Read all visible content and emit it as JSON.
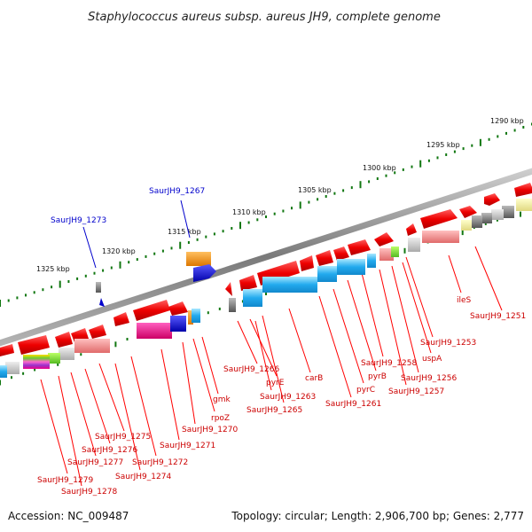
{
  "title": "Staphylococcus aureus subsp. aureus JH9, complete genome",
  "footer": {
    "accession": "Accession: NC_009487",
    "summary": "Topology: circular; Length: 2,906,700 bp; Genes: 2,777"
  },
  "scale_labels": [
    "1290 kbp",
    "1295 kbp",
    "1300 kbp",
    "1305 kbp",
    "1310 kbp",
    "1315 kbp",
    "1320 kbp",
    "1325 kbp"
  ],
  "gene_labels": [
    {
      "text": "ileS",
      "highlight": false
    },
    {
      "text": "SaurJH9_1251",
      "highlight": false
    },
    {
      "text": "SaurJH9_1253",
      "highlight": false
    },
    {
      "text": "uspA",
      "highlight": false
    },
    {
      "text": "SaurJH9_1256",
      "highlight": false
    },
    {
      "text": "SaurJH9_1257",
      "highlight": false
    },
    {
      "text": "SaurJH9_1258",
      "highlight": false
    },
    {
      "text": "pyrB",
      "highlight": false
    },
    {
      "text": "pyrC",
      "highlight": false
    },
    {
      "text": "SaurJH9_1261",
      "highlight": false
    },
    {
      "text": "carB",
      "highlight": false
    },
    {
      "text": "SaurJH9_1266",
      "highlight": false
    },
    {
      "text": "pyrE",
      "highlight": false
    },
    {
      "text": "SaurJH9_1263",
      "highlight": false
    },
    {
      "text": "SaurJH9_1265",
      "highlight": false
    },
    {
      "text": "gmk",
      "highlight": false
    },
    {
      "text": "rpoZ",
      "highlight": false
    },
    {
      "text": "SaurJH9_1270",
      "highlight": false
    },
    {
      "text": "SaurJH9_1271",
      "highlight": false
    },
    {
      "text": "SaurJH9_1272",
      "highlight": false
    },
    {
      "text": "SaurJH9_1274",
      "highlight": false
    },
    {
      "text": "SaurJH9_1275",
      "highlight": false
    },
    {
      "text": "SaurJH9_1276",
      "highlight": false
    },
    {
      "text": "SaurJH9_1277",
      "highlight": false
    },
    {
      "text": "SaurJH9_1279",
      "highlight": false
    },
    {
      "text": "SaurJH9_1278",
      "highlight": false
    },
    {
      "text": "SaurJH9_1267",
      "highlight": true
    },
    {
      "text": "SaurJH9_1273",
      "highlight": true
    }
  ],
  "colors": {
    "backbone": "#8a8a8a",
    "gene_red": "#ee0000",
    "gene_pink": "#f08080",
    "gene_cyan": "#33bbee",
    "gene_blue": "#0000ee",
    "gene_orange": "#ee8800",
    "gene_magenta": "#ee0088",
    "gene_gray": "#777777",
    "gene_yellow": "#eeee99",
    "scale_green": "#117711",
    "label_red": "#cc0000",
    "label_blue": "#0000cc"
  }
}
